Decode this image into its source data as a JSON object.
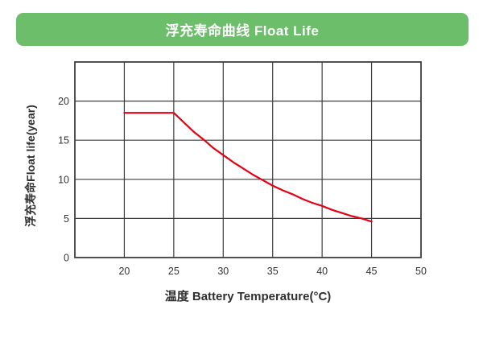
{
  "header": {
    "title": "浮充寿命曲线 Float Life",
    "background_color": "#6cbe6b",
    "text_color": "#ffffff"
  },
  "chart_data": {
    "type": "line",
    "title": "浮充寿命曲线 Float Life",
    "xlabel": "温度 Battery Temperature(°C)",
    "ylabel": "浮充寿命Float life(year)",
    "xlim": [
      15,
      50
    ],
    "ylim": [
      0,
      25
    ],
    "x_tick_labels": [
      20,
      25,
      30,
      35,
      40,
      45,
      50
    ],
    "y_tick_labels": [
      0,
      5,
      10,
      15,
      20
    ],
    "grid": true,
    "grid_color": "#3c3c3c",
    "legend": "none",
    "series": [
      {
        "name": "Float Life",
        "color": "#e60013",
        "points": [
          [
            20,
            18.5
          ],
          [
            25,
            18.5
          ],
          [
            26,
            17.3
          ],
          [
            27,
            16.1
          ],
          [
            28,
            15.1
          ],
          [
            29,
            14.0
          ],
          [
            30,
            13.1
          ],
          [
            31,
            12.2
          ],
          [
            32,
            11.4
          ],
          [
            33,
            10.6
          ],
          [
            34,
            9.9
          ],
          [
            35,
            9.2
          ],
          [
            36,
            8.6
          ],
          [
            37,
            8.1
          ],
          [
            38,
            7.5
          ],
          [
            39,
            7.0
          ],
          [
            40,
            6.6
          ],
          [
            41,
            6.1
          ],
          [
            42,
            5.7
          ],
          [
            43,
            5.3
          ],
          [
            44,
            5.0
          ],
          [
            45,
            4.6
          ]
        ]
      }
    ]
  }
}
